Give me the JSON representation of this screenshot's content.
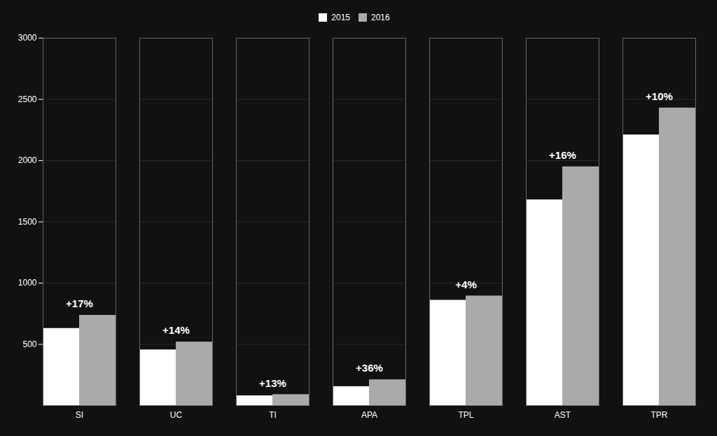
{
  "chart_data": {
    "type": "bar",
    "categories": [
      "SI",
      "UC",
      "TI",
      "APA",
      "TPL",
      "AST",
      "TPR"
    ],
    "series": [
      {
        "name": "2015",
        "color": "#ffffff",
        "values": [
          630,
          455,
          80,
          155,
          860,
          1680,
          2210
        ]
      },
      {
        "name": "2016",
        "color": "#aaaaaa",
        "values": [
          737,
          519,
          90,
          211,
          895,
          1950,
          2430
        ]
      }
    ],
    "annotations": [
      {
        "category": "SI",
        "text": "+17%"
      },
      {
        "category": "UC",
        "text": "+14%"
      },
      {
        "category": "TI",
        "text": "+13%"
      },
      {
        "category": "APA",
        "text": "+36%"
      },
      {
        "category": "TPL",
        "text": "+4%"
      },
      {
        "category": "AST",
        "text": "+16%"
      },
      {
        "category": "TPR",
        "text": "+10%"
      }
    ],
    "ylim": [
      0,
      3000
    ],
    "yticks": [
      500,
      1000,
      1500,
      2000,
      2500,
      3000
    ],
    "grid": true,
    "legend": "top"
  }
}
